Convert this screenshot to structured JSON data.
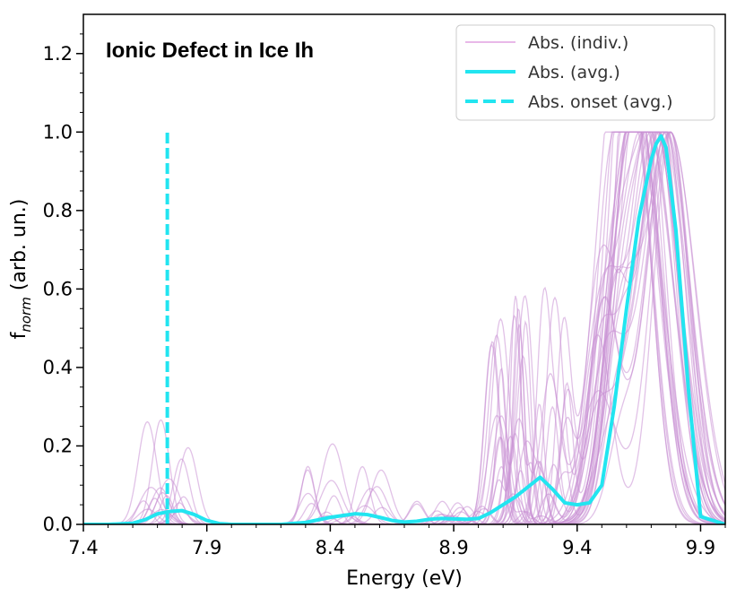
{
  "chart_data": {
    "type": "line",
    "title": "Ionic Defect in Ice Ih",
    "xlabel": "Energy (eV)",
    "ylabel_base": "f",
    "ylabel_subscript": "norm",
    "ylabel_suffix": " (arb. un.)",
    "xlim": [
      7.4,
      10.0
    ],
    "ylim": [
      0.0,
      1.3
    ],
    "x_ticks": [
      7.4,
      7.9,
      8.4,
      8.9,
      9.4,
      9.9
    ],
    "x_tick_labels": [
      "7.4",
      "7.9",
      "8.4",
      "8.9",
      "9.4",
      "9.9"
    ],
    "y_ticks": [
      0.0,
      0.2,
      0.4,
      0.6,
      0.8,
      1.0,
      1.2
    ],
    "y_tick_labels": [
      "0.0",
      "0.2",
      "0.4",
      "0.6",
      "0.8",
      "1.0",
      "1.2"
    ],
    "legend": {
      "location": "upper right",
      "entries": [
        "Abs. (indiv.)",
        "Abs. (avg.)",
        "Abs. onset (avg.)"
      ]
    },
    "series": [
      {
        "name": "Abs. (avg.)",
        "style": "solid",
        "color": "#22e5f0",
        "x": [
          7.4,
          7.5,
          7.6,
          7.65,
          7.7,
          7.75,
          7.8,
          7.85,
          7.9,
          7.95,
          8.0,
          8.2,
          8.3,
          8.4,
          8.5,
          8.55,
          8.6,
          8.65,
          8.7,
          8.75,
          8.8,
          8.85,
          8.9,
          8.95,
          9.0,
          9.05,
          9.1,
          9.15,
          9.2,
          9.25,
          9.3,
          9.35,
          9.4,
          9.45,
          9.5,
          9.55,
          9.6,
          9.65,
          9.7,
          9.72,
          9.74,
          9.76,
          9.8,
          9.85,
          9.9,
          10.0
        ],
        "y": [
          0.0,
          0.0,
          0.003,
          0.012,
          0.027,
          0.033,
          0.035,
          0.025,
          0.01,
          0.002,
          0.0,
          0.0,
          0.005,
          0.018,
          0.027,
          0.025,
          0.018,
          0.01,
          0.006,
          0.008,
          0.013,
          0.015,
          0.014,
          0.013,
          0.015,
          0.03,
          0.05,
          0.07,
          0.095,
          0.12,
          0.09,
          0.055,
          0.05,
          0.055,
          0.1,
          0.3,
          0.55,
          0.78,
          0.93,
          0.97,
          0.99,
          0.96,
          0.75,
          0.35,
          0.02,
          0.0
        ]
      },
      {
        "name": "Abs. onset (avg.)",
        "style": "dashed",
        "color": "#22e5f0",
        "x": [
          7.74,
          7.74
        ],
        "y": [
          0.0,
          1.0
        ]
      }
    ],
    "individual_traces_description": "Many thin translucent purple individual absorption spectra, each normalized to 1.0 near 9.6–9.8 eV, with smaller peaks near 7.7–7.8 eV (up to ~0.26), 8.4–8.6 eV (up to ~0.21) and 9.1–9.35 eV (up to ~0.64)."
  },
  "colors": {
    "indiv": "#c890d4",
    "avg": "#22e5f0",
    "axis": "#000000"
  }
}
